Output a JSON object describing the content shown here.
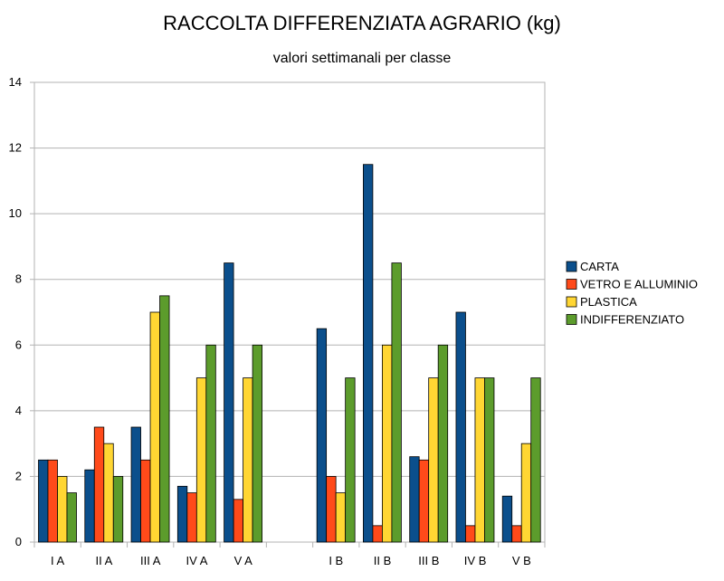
{
  "chart_data": {
    "type": "bar",
    "title": "RACCOLTA DIFFERENZIATA AGRARIO (kg)",
    "subtitle": "valori settimanali per classe",
    "xlabel": "",
    "ylabel": "",
    "ylim": [
      0,
      14
    ],
    "yticks": [
      0,
      2,
      4,
      6,
      8,
      10,
      12,
      14
    ],
    "grid": true,
    "legend_position": "right",
    "categories": [
      "I A",
      "II A",
      "III A",
      "IV A",
      "V A",
      "",
      "I B",
      "II B",
      "III B",
      "IV B",
      "V B"
    ],
    "series": [
      {
        "name": "CARTA",
        "color": "#0b4f8c",
        "values": [
          2.5,
          2.2,
          3.5,
          1.7,
          8.5,
          null,
          6.5,
          11.5,
          2.6,
          7.0,
          1.4
        ]
      },
      {
        "name": "VETRO E ALLUMINIO",
        "color": "#ff4a1a",
        "values": [
          2.5,
          3.5,
          2.5,
          1.5,
          1.3,
          null,
          2.0,
          0.5,
          2.5,
          0.5,
          0.5
        ]
      },
      {
        "name": "PLASTICA",
        "color": "#ffd633",
        "values": [
          2.0,
          3.0,
          7.0,
          5.0,
          5.0,
          null,
          1.5,
          6.0,
          5.0,
          5.0,
          3.0
        ]
      },
      {
        "name": "INDIFFERENZIATO",
        "color": "#5c9c2c",
        "values": [
          1.5,
          2.0,
          7.5,
          6.0,
          6.0,
          null,
          5.0,
          8.5,
          6.0,
          5.0,
          5.0
        ]
      }
    ]
  }
}
